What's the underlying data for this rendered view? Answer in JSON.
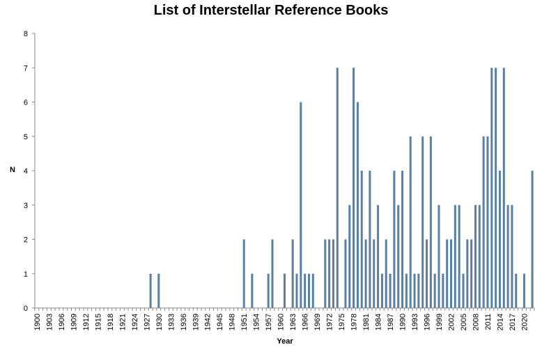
{
  "chart_data": {
    "type": "bar",
    "title": "List of Interstellar Reference Books",
    "xlabel": "Year",
    "ylabel": "N",
    "ylim": [
      0,
      8
    ],
    "yticks": [
      0,
      1,
      2,
      3,
      4,
      5,
      6,
      7,
      8
    ],
    "xrange": [
      1900,
      2022
    ],
    "xtick_labels_every": 3,
    "grid": false,
    "legend": null,
    "bar_color": "#5b7fa3",
    "categories": [
      1900,
      1901,
      1902,
      1903,
      1904,
      1905,
      1906,
      1907,
      1908,
      1909,
      1910,
      1911,
      1912,
      1913,
      1914,
      1915,
      1916,
      1917,
      1918,
      1919,
      1920,
      1921,
      1922,
      1923,
      1924,
      1925,
      1926,
      1927,
      1928,
      1929,
      1930,
      1931,
      1932,
      1933,
      1934,
      1935,
      1936,
      1937,
      1938,
      1939,
      1940,
      1941,
      1942,
      1943,
      1944,
      1945,
      1946,
      1947,
      1948,
      1949,
      1950,
      1951,
      1952,
      1953,
      1954,
      1955,
      1956,
      1957,
      1958,
      1959,
      1960,
      1961,
      1962,
      1963,
      1964,
      1965,
      1966,
      1967,
      1968,
      1969,
      1970,
      1971,
      1972,
      1973,
      1974,
      1975,
      1976,
      1977,
      1978,
      1979,
      1980,
      1981,
      1982,
      1983,
      1984,
      1985,
      1986,
      1987,
      1988,
      1989,
      1990,
      1991,
      1992,
      1993,
      1994,
      1995,
      1996,
      1997,
      1998,
      1999,
      2000,
      2001,
      2002,
      2003,
      2004,
      2005,
      2006,
      2007,
      2008,
      2009,
      2010,
      2011,
      2012,
      2013,
      2014,
      2015,
      2016,
      2017,
      2018,
      2019,
      2020,
      2021,
      2022
    ],
    "values": [
      0,
      0,
      0,
      0,
      0,
      0,
      0,
      0,
      0,
      0,
      0,
      0,
      0,
      0,
      0,
      0,
      0,
      0,
      0,
      0,
      0,
      0,
      0,
      0,
      0,
      0,
      0,
      0,
      1,
      0,
      1,
      0,
      0,
      0,
      0,
      0,
      0,
      0,
      0,
      0,
      0,
      0,
      0,
      0,
      0,
      0,
      0,
      0,
      0,
      0,
      0,
      2,
      0,
      1,
      0,
      0,
      0,
      1,
      2,
      0,
      0,
      1,
      0,
      2,
      1,
      6,
      1,
      1,
      1,
      0,
      0,
      2,
      2,
      2,
      7,
      0,
      2,
      3,
      7,
      6,
      4,
      2,
      4,
      2,
      3,
      1,
      2,
      1,
      4,
      3,
      4,
      1,
      5,
      1,
      1,
      5,
      2,
      5,
      1,
      3,
      1,
      2,
      2,
      3,
      3,
      1,
      2,
      2,
      3,
      3,
      5,
      5,
      7,
      7,
      4,
      7,
      3,
      3,
      1,
      0,
      1,
      0,
      4
    ]
  }
}
